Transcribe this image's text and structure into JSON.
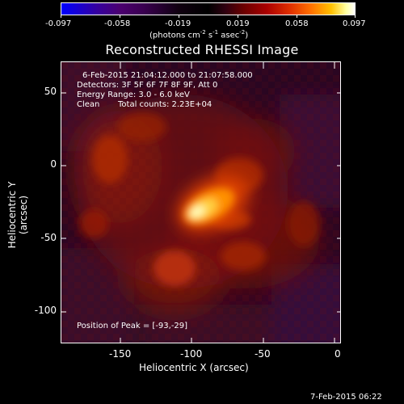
{
  "colorbar": {
    "tick_labels": [
      "-0.097",
      "-0.058",
      "-0.019",
      "0.019",
      "0.058",
      "0.097"
    ],
    "unit_parts": [
      "(photons cm",
      "-2",
      " s",
      "-1",
      " asec",
      "-2",
      ")"
    ]
  },
  "title": "Reconstructed RHESSI Image",
  "info": {
    "time_range": "6-Feb-2015 21:04:12.000 to 21:07:58.000",
    "detectors": "Detectors: 3F 5F 6F 7F 8F 9F, Att 0",
    "energy_range": "Energy Range: 3.0 - 6.0 keV",
    "clean_label": "Clean",
    "total_counts": "Total counts: 2.23E+04",
    "peak_position": "Position of Peak = [-93,-29]"
  },
  "axes": {
    "ylabel": "Heliocentric Y (arcsec)",
    "xlabel": "Heliocentric X (arcsec)",
    "yticks": [
      "50",
      "0",
      "-50",
      "-100"
    ],
    "xticks": [
      "-150",
      "-100",
      "-50",
      "0"
    ],
    "x_range": [
      -190,
      0
    ],
    "y_range": [
      -120,
      70
    ]
  },
  "image": {
    "peak_xy": [
      -93,
      -29
    ],
    "colormap": "red-temperature",
    "background_color": "#3a0a28"
  },
  "footer": {
    "datestamp": "7-Feb-2015 06:22"
  }
}
